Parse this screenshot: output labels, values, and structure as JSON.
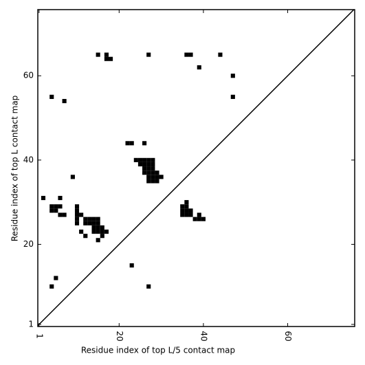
{
  "chart_data": {
    "type": "scatter",
    "marker": "square",
    "color": "#000000",
    "xlabel": "Residue index of top L/5 contact map",
    "ylabel": "Residue index of top L contact map",
    "xlim": [
      0.7,
      75.9
    ],
    "ylim": [
      0.5,
      75.7
    ],
    "xticks": [
      1,
      20,
      40,
      60
    ],
    "yticks": [
      1,
      20,
      40,
      60
    ],
    "diagonal": true,
    "x": [
      15,
      17,
      17,
      18,
      27,
      36,
      37,
      44,
      39,
      47,
      47,
      4,
      7,
      22,
      23,
      26,
      24,
      25,
      26,
      27,
      28,
      25,
      26,
      27,
      28,
      26,
      27,
      28,
      26,
      27,
      28,
      29,
      27,
      28,
      29,
      30,
      27,
      28,
      29,
      9,
      2,
      6,
      4,
      5,
      6,
      10,
      4,
      5,
      10,
      6,
      7,
      10,
      11,
      10,
      12,
      13,
      14,
      15,
      10,
      12,
      13,
      14,
      15,
      14,
      15,
      16,
      11,
      14,
      15,
      16,
      17,
      12,
      16,
      15,
      5,
      4,
      23,
      27,
      36,
      35,
      36,
      35,
      36,
      37,
      35,
      36,
      37,
      39,
      38,
      39,
      40
    ],
    "y": [
      65,
      65,
      64,
      64,
      65,
      65,
      65,
      65,
      62,
      60,
      55,
      55,
      54,
      44,
      44,
      44,
      40,
      40,
      40,
      40,
      40,
      39,
      39,
      39,
      39,
      38,
      38,
      38,
      37,
      37,
      37,
      37,
      36,
      36,
      36,
      36,
      35,
      35,
      35,
      36,
      31,
      31,
      29,
      29,
      29,
      29,
      28,
      28,
      28,
      27,
      27,
      27,
      27,
      26,
      26,
      26,
      26,
      26,
      25,
      25,
      25,
      25,
      25,
      24,
      24,
      24,
      23,
      23,
      23,
      23,
      23,
      22,
      22,
      21,
      12,
      10,
      15,
      10,
      30,
      29,
      29,
      28,
      28,
      28,
      27,
      27,
      27,
      27,
      26,
      26,
      26
    ]
  }
}
